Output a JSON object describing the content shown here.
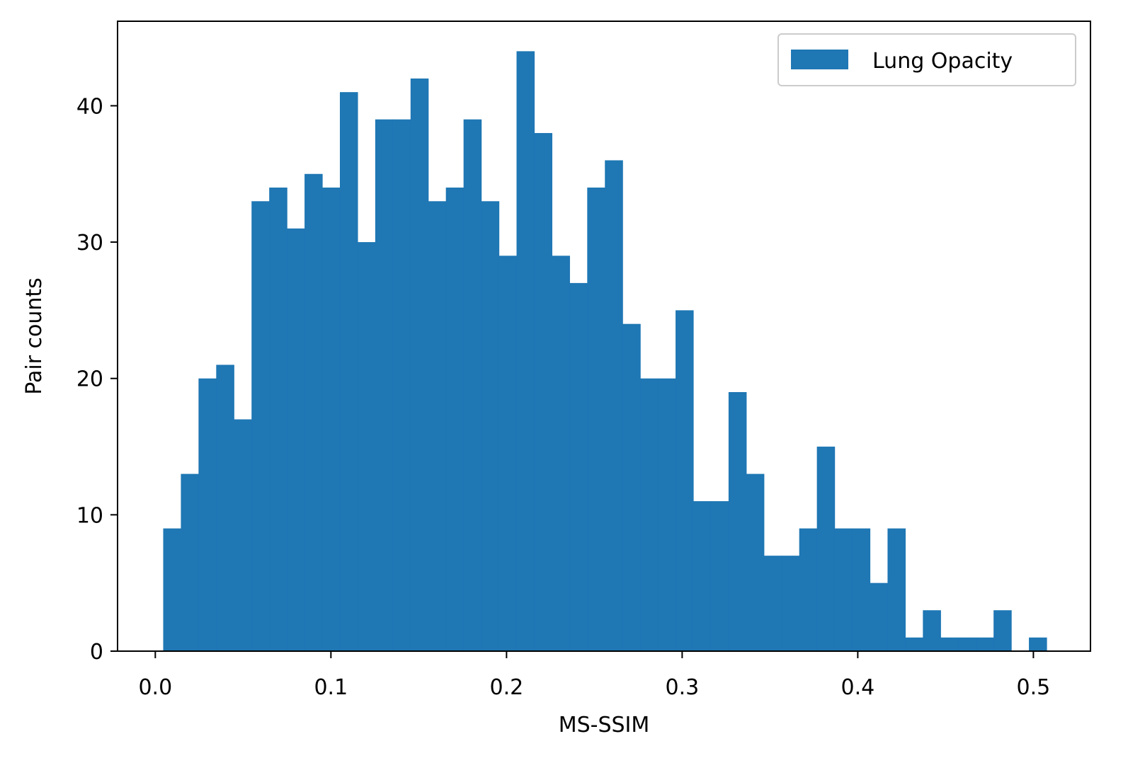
{
  "chart_data": {
    "type": "bar",
    "title": "",
    "xlabel": "MS-SSIM",
    "ylabel": "Pair counts",
    "bin_start": 0.0045,
    "bin_width": 0.01006,
    "series": [
      {
        "name": "Lung Opacity",
        "color": "#1f77b4",
        "values": [
          9,
          13,
          20,
          21,
          17,
          33,
          34,
          31,
          35,
          34,
          41,
          30,
          39,
          39,
          42,
          33,
          34,
          39,
          33,
          29,
          44,
          38,
          29,
          27,
          34,
          36,
          24,
          20,
          20,
          25,
          11,
          11,
          19,
          13,
          7,
          7,
          9,
          15,
          9,
          9,
          5,
          9,
          1,
          3,
          1,
          1,
          1,
          3,
          0,
          1
        ]
      }
    ],
    "xlim": [
      -0.0215,
      0.5325
    ],
    "ylim": [
      0,
      46.2
    ],
    "xticks": [
      {
        "value": 0.0,
        "label": "0.0"
      },
      {
        "value": 0.1,
        "label": "0.1"
      },
      {
        "value": 0.2,
        "label": "0.2"
      },
      {
        "value": 0.3,
        "label": "0.3"
      },
      {
        "value": 0.4,
        "label": "0.4"
      },
      {
        "value": 0.5,
        "label": "0.5"
      }
    ],
    "yticks": [
      {
        "value": 0,
        "label": "0"
      },
      {
        "value": 10,
        "label": "10"
      },
      {
        "value": 20,
        "label": "20"
      },
      {
        "value": 30,
        "label": "30"
      },
      {
        "value": 40,
        "label": "40"
      }
    ],
    "grid": false,
    "legend_position": "top-right"
  }
}
